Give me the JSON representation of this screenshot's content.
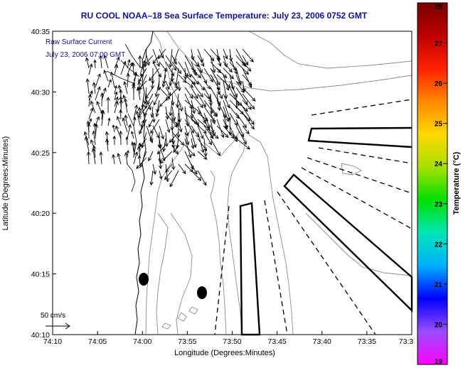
{
  "chart_data": {
    "type": "map",
    "title": "RU COOL  NOAA–18  Sea Surface Temperature:  July 23, 2006 0752 GMT",
    "xlabel": "Longitude (Degrees:Minutes)",
    "ylabel": "Latitude (Degrees:Minutes)",
    "x_ticks": [
      "74:10",
      "74:05",
      "74:00",
      "73:55",
      "73:50",
      "73:45",
      "73:40",
      "73:35",
      "73:3"
    ],
    "y_ticks": [
      "40:10",
      "40:15",
      "40:20",
      "40:25",
      "40:30",
      "40:35"
    ],
    "xlim": [
      "74:10",
      "73:30"
    ],
    "ylim": [
      "40:10",
      "40:35"
    ],
    "annotations": [
      "Raw Surface Current",
      "July 23, 2006 07:00 GMT"
    ],
    "vector_scale_label": "50 cm/s",
    "colorbar": {
      "label": "Temperature (°C)",
      "ticks": [
        "19",
        "20",
        "21",
        "22",
        "23",
        "24",
        "25",
        "26",
        "27",
        "28"
      ],
      "range": [
        19,
        28
      ],
      "colors": [
        "#ff00ff",
        "#9a4cff",
        "#0000ff",
        "#00b0ff",
        "#00e6b8",
        "#00e000",
        "#a8e000",
        "#ffd800",
        "#ff8800",
        "#ff2000",
        "#c00000",
        "#7a0000"
      ]
    },
    "grid": false
  }
}
